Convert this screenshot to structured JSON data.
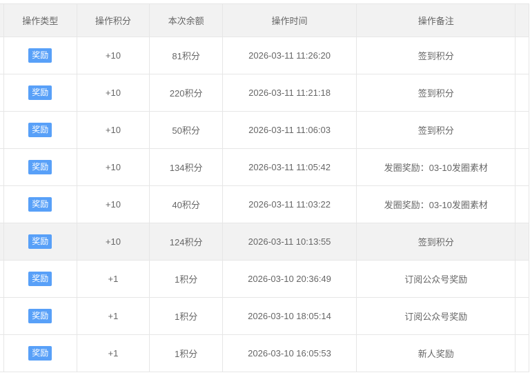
{
  "table": {
    "columns": [
      "操作类型",
      "操作积分",
      "本次余额",
      "操作时间",
      "操作备注"
    ],
    "badge_color": "#58a0f8",
    "highlighted_row": 5,
    "rows": [
      {
        "type": "奖励",
        "points": "+10",
        "balance": "81积分",
        "time": "2026-03-11 11:26:20",
        "note": "签到积分"
      },
      {
        "type": "奖励",
        "points": "+10",
        "balance": "220积分",
        "time": "2026-03-11 11:21:18",
        "note": "签到积分"
      },
      {
        "type": "奖励",
        "points": "+10",
        "balance": "50积分",
        "time": "2026-03-11 11:06:03",
        "note": "签到积分"
      },
      {
        "type": "奖励",
        "points": "+10",
        "balance": "134积分",
        "time": "2026-03-11 11:05:42",
        "note": "发圈奖励：03-10发圈素材"
      },
      {
        "type": "奖励",
        "points": "+10",
        "balance": "40积分",
        "time": "2026-03-11 11:03:22",
        "note": "发圈奖励：03-10发圈素材"
      },
      {
        "type": "奖励",
        "points": "+10",
        "balance": "124积分",
        "time": "2026-03-11 10:13:55",
        "note": "签到积分"
      },
      {
        "type": "奖励",
        "points": "+1",
        "balance": "1积分",
        "time": "2026-03-10 20:36:49",
        "note": "订阅公众号奖励"
      },
      {
        "type": "奖励",
        "points": "+1",
        "balance": "1积分",
        "time": "2026-03-10 18:05:14",
        "note": "订阅公众号奖励"
      },
      {
        "type": "奖励",
        "points": "+1",
        "balance": "1积分",
        "time": "2026-03-10 16:05:53",
        "note": "新人奖励"
      }
    ]
  }
}
